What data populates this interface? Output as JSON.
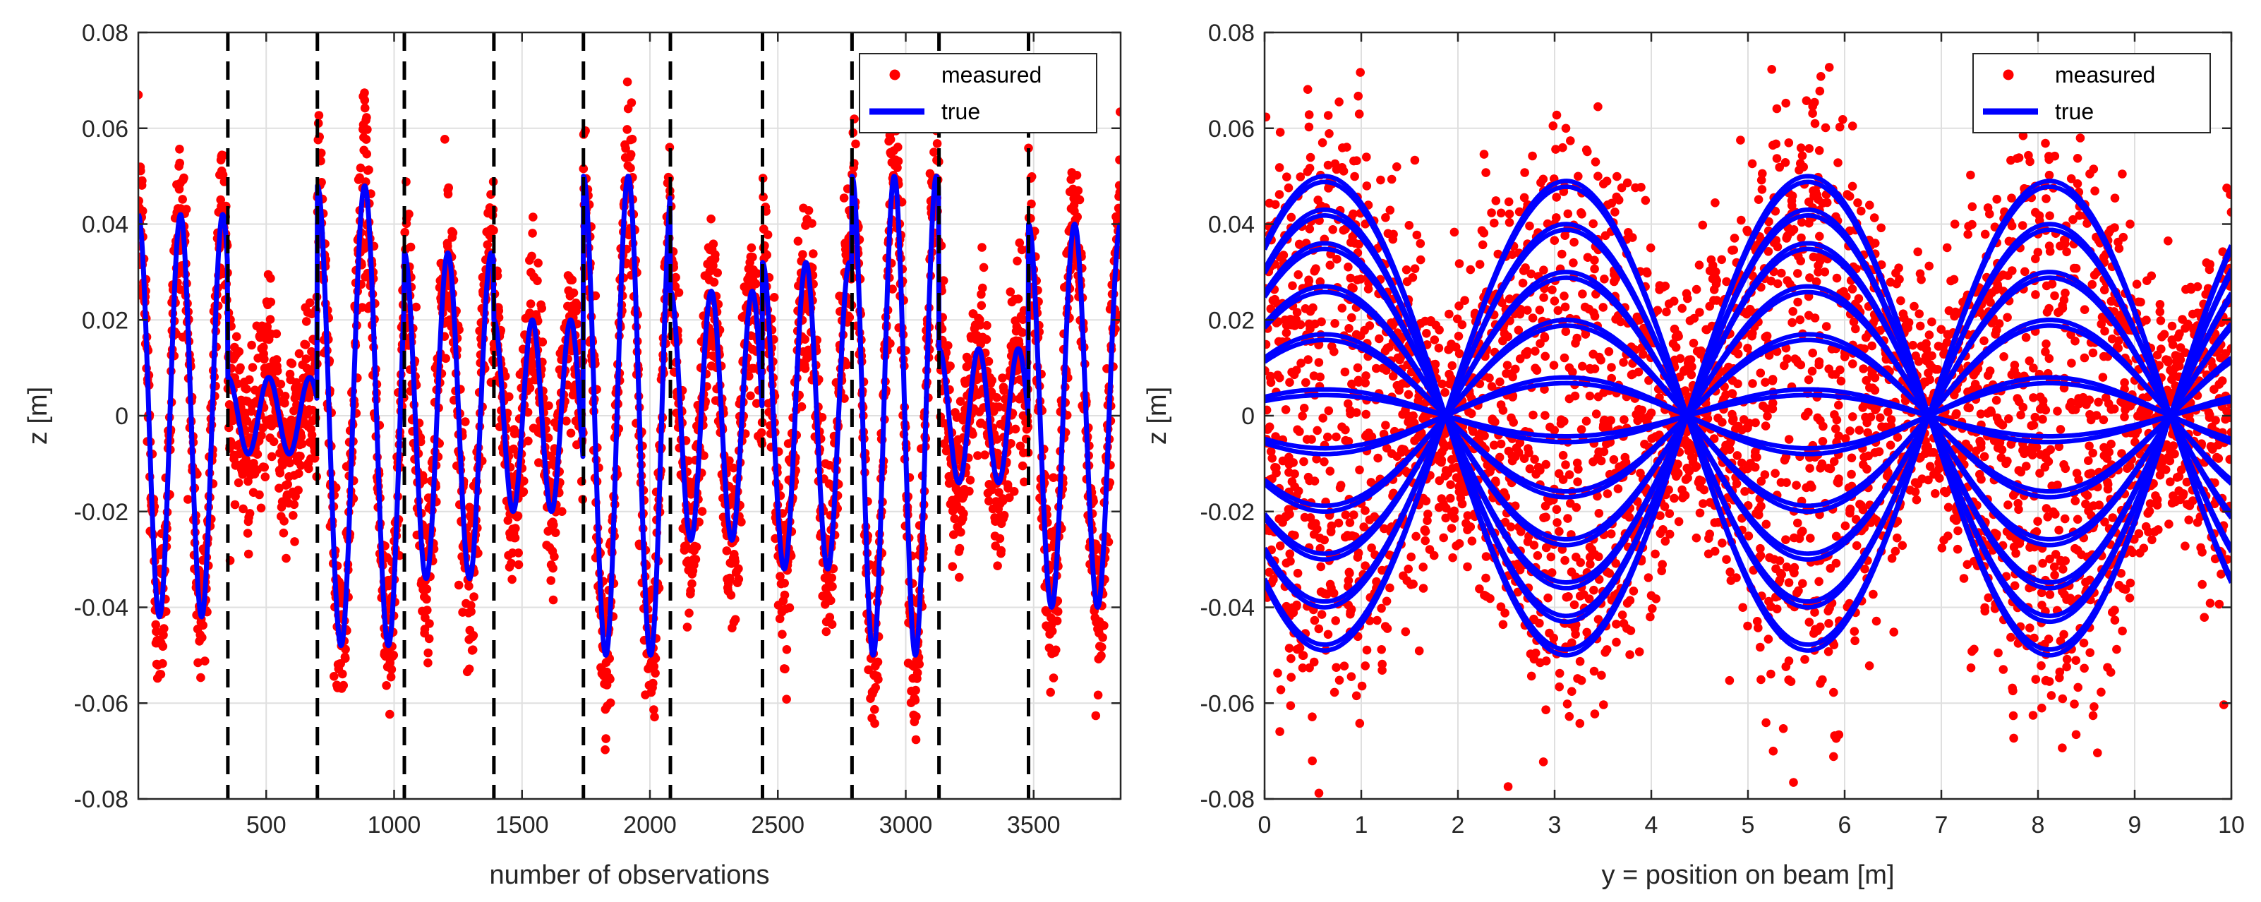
{
  "chart_data": [
    {
      "type": "scatter+line",
      "title": "",
      "xlabel": "number of observations",
      "ylabel": "z [m]",
      "xlim": [
        0,
        3840
      ],
      "ylim": [
        -0.08,
        0.08
      ],
      "xticks": [
        500,
        1000,
        1500,
        2000,
        2500,
        3000,
        3500
      ],
      "xtick_labels": [
        "500",
        "1000",
        "1500",
        "2000",
        "2500",
        "3000",
        "3500"
      ],
      "yticks": [
        -0.08,
        -0.06,
        -0.04,
        -0.02,
        0,
        0.02,
        0.04,
        0.06,
        0.08
      ],
      "ytick_labels": [
        "-0.08",
        "-0.06",
        "-0.04",
        "-0.02",
        "0",
        "0.02",
        "0.04",
        "0.06",
        "0.08"
      ],
      "grid": true,
      "legend": {
        "position": "top-right",
        "entries": [
          "measured",
          "true"
        ]
      },
      "segment_boundaries": [
        350,
        700,
        1040,
        1390,
        1740,
        2080,
        2440,
        2790,
        3130,
        3480
      ],
      "segment_amplitudes": [
        0.042,
        0.008,
        0.048,
        0.034,
        0.02,
        0.05,
        0.026,
        0.032,
        0.05,
        0.014,
        0.04
      ],
      "segment_periods": [
        165,
        160,
        185,
        170,
        150,
        175,
        160,
        170,
        165,
        155,
        180
      ],
      "noise_std": 0.009,
      "series": [
        {
          "name": "measured",
          "kind": "markers",
          "color": "#ff0000",
          "n_points": 3840
        },
        {
          "name": "true",
          "kind": "line",
          "color": "#0000ff"
        }
      ]
    },
    {
      "type": "scatter+line",
      "title": "",
      "xlabel": "y = position on beam [m]",
      "ylabel": "z [m]",
      "xlim": [
        0,
        10
      ],
      "ylim": [
        -0.08,
        0.08
      ],
      "xticks": [
        0,
        1,
        2,
        3,
        4,
        5,
        6,
        7,
        8,
        9,
        10
      ],
      "xtick_labels": [
        "0",
        "1",
        "2",
        "3",
        "4",
        "5",
        "6",
        "7",
        "8",
        "9",
        "10"
      ],
      "yticks": [
        -0.08,
        -0.06,
        -0.04,
        -0.02,
        0,
        0.02,
        0.04,
        0.06,
        0.08
      ],
      "ytick_labels": [
        "-0.08",
        "-0.06",
        "-0.04",
        "-0.02",
        "0",
        "0.02",
        "0.04",
        "0.06",
        "0.08"
      ],
      "grid": true,
      "legend": {
        "position": "top-right",
        "entries": [
          "measured",
          "true"
        ]
      },
      "mode_shape": {
        "wavelength_m": 5.0,
        "zero_crossings_m": [
          1.87,
          4.37,
          6.87,
          9.37
        ]
      },
      "curve_amplitudes": [
        0.05,
        0.043,
        0.036,
        0.027,
        0.017,
        0.0055,
        -0.008,
        -0.02,
        -0.03,
        -0.04,
        -0.049
      ],
      "noise_std": 0.012,
      "series": [
        {
          "name": "measured",
          "kind": "markers",
          "color": "#ff0000",
          "n_points": 3600
        },
        {
          "name": "true",
          "kind": "line",
          "color": "#0000ff"
        }
      ]
    }
  ]
}
